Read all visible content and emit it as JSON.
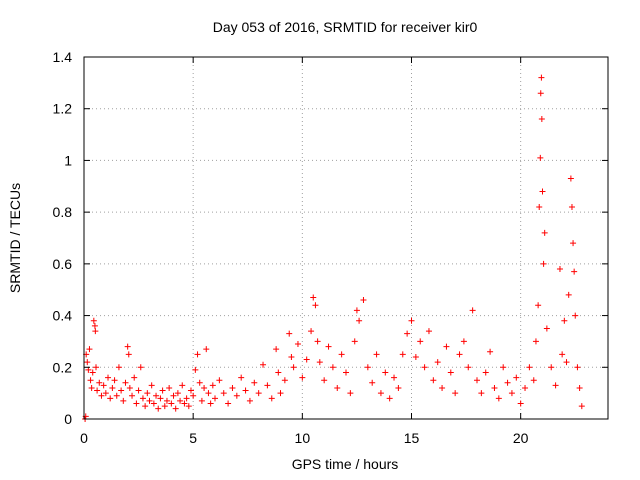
{
  "chart_data": {
    "type": "scatter",
    "title": "Day 053 of 2016, SRMTID for receiver kir0",
    "xlabel": "GPS time / hours",
    "ylabel": "SRMTID / TECUs",
    "xlim": [
      0,
      24
    ],
    "ylim": [
      0,
      1.4
    ],
    "xticks": [
      0,
      5,
      10,
      15,
      20
    ],
    "xtick_labels": [
      "0",
      "5",
      "10",
      "15",
      "20"
    ],
    "yticks": [
      0,
      0.2,
      0.4,
      0.6,
      0.8,
      1,
      1.2,
      1.4
    ],
    "ytick_labels": [
      "0",
      "0.2",
      "0.4",
      "0.6",
      "0.8",
      "1",
      "1.2",
      "1.4"
    ],
    "grid": true,
    "marker": "+",
    "color": "#ff0000",
    "series": [
      {
        "name": "kir0",
        "points": [
          [
            0.05,
            0.0
          ],
          [
            0.08,
            0.01
          ],
          [
            0.1,
            0.25
          ],
          [
            0.15,
            0.22
          ],
          [
            0.2,
            0.19
          ],
          [
            0.25,
            0.27
          ],
          [
            0.3,
            0.15
          ],
          [
            0.35,
            0.12
          ],
          [
            0.4,
            0.18
          ],
          [
            0.45,
            0.38
          ],
          [
            0.5,
            0.36
          ],
          [
            0.52,
            0.34
          ],
          [
            0.55,
            0.2
          ],
          [
            0.6,
            0.11
          ],
          [
            0.7,
            0.14
          ],
          [
            0.8,
            0.09
          ],
          [
            0.9,
            0.13
          ],
          [
            1.0,
            0.1
          ],
          [
            1.1,
            0.16
          ],
          [
            1.2,
            0.08
          ],
          [
            1.3,
            0.12
          ],
          [
            1.4,
            0.15
          ],
          [
            1.5,
            0.09
          ],
          [
            1.6,
            0.2
          ],
          [
            1.7,
            0.11
          ],
          [
            1.8,
            0.07
          ],
          [
            1.9,
            0.14
          ],
          [
            2.0,
            0.28
          ],
          [
            2.05,
            0.25
          ],
          [
            2.1,
            0.12
          ],
          [
            2.2,
            0.09
          ],
          [
            2.3,
            0.16
          ],
          [
            2.4,
            0.06
          ],
          [
            2.5,
            0.11
          ],
          [
            2.6,
            0.2
          ],
          [
            2.7,
            0.08
          ],
          [
            2.8,
            0.05
          ],
          [
            2.9,
            0.1
          ],
          [
            3.0,
            0.07
          ],
          [
            3.1,
            0.13
          ],
          [
            3.2,
            0.06
          ],
          [
            3.3,
            0.09
          ],
          [
            3.4,
            0.04
          ],
          [
            3.5,
            0.08
          ],
          [
            3.6,
            0.11
          ],
          [
            3.7,
            0.05
          ],
          [
            3.8,
            0.07
          ],
          [
            3.9,
            0.12
          ],
          [
            4.0,
            0.06
          ],
          [
            4.1,
            0.09
          ],
          [
            4.2,
            0.04
          ],
          [
            4.3,
            0.1
          ],
          [
            4.4,
            0.07
          ],
          [
            4.5,
            0.13
          ],
          [
            4.6,
            0.06
          ],
          [
            4.7,
            0.08
          ],
          [
            4.8,
            0.05
          ],
          [
            4.9,
            0.11
          ],
          [
            5.0,
            0.09
          ],
          [
            5.1,
            0.19
          ],
          [
            5.2,
            0.25
          ],
          [
            5.3,
            0.14
          ],
          [
            5.4,
            0.07
          ],
          [
            5.5,
            0.12
          ],
          [
            5.6,
            0.27
          ],
          [
            5.7,
            0.1
          ],
          [
            5.8,
            0.06
          ],
          [
            5.9,
            0.13
          ],
          [
            6.0,
            0.08
          ],
          [
            6.2,
            0.15
          ],
          [
            6.4,
            0.1
          ],
          [
            6.6,
            0.06
          ],
          [
            6.8,
            0.12
          ],
          [
            7.0,
            0.09
          ],
          [
            7.2,
            0.16
          ],
          [
            7.4,
            0.11
          ],
          [
            7.6,
            0.07
          ],
          [
            7.8,
            0.14
          ],
          [
            8.0,
            0.1
          ],
          [
            8.2,
            0.21
          ],
          [
            8.4,
            0.13
          ],
          [
            8.6,
            0.08
          ],
          [
            8.8,
            0.27
          ],
          [
            8.9,
            0.18
          ],
          [
            9.0,
            0.1
          ],
          [
            9.2,
            0.15
          ],
          [
            9.4,
            0.33
          ],
          [
            9.5,
            0.24
          ],
          [
            9.6,
            0.2
          ],
          [
            9.8,
            0.29
          ],
          [
            10.0,
            0.16
          ],
          [
            10.2,
            0.23
          ],
          [
            10.4,
            0.34
          ],
          [
            10.5,
            0.47
          ],
          [
            10.6,
            0.44
          ],
          [
            10.7,
            0.3
          ],
          [
            10.8,
            0.22
          ],
          [
            11.0,
            0.15
          ],
          [
            11.2,
            0.28
          ],
          [
            11.4,
            0.2
          ],
          [
            11.6,
            0.12
          ],
          [
            11.8,
            0.25
          ],
          [
            12.0,
            0.18
          ],
          [
            12.2,
            0.1
          ],
          [
            12.4,
            0.3
          ],
          [
            12.5,
            0.42
          ],
          [
            12.6,
            0.38
          ],
          [
            12.8,
            0.46
          ],
          [
            13.0,
            0.2
          ],
          [
            13.2,
            0.14
          ],
          [
            13.4,
            0.25
          ],
          [
            13.6,
            0.1
          ],
          [
            13.8,
            0.18
          ],
          [
            14.0,
            0.08
          ],
          [
            14.2,
            0.16
          ],
          [
            14.4,
            0.12
          ],
          [
            14.6,
            0.25
          ],
          [
            14.8,
            0.33
          ],
          [
            15.0,
            0.38
          ],
          [
            15.2,
            0.24
          ],
          [
            15.4,
            0.3
          ],
          [
            15.6,
            0.2
          ],
          [
            15.8,
            0.34
          ],
          [
            16.0,
            0.15
          ],
          [
            16.2,
            0.22
          ],
          [
            16.4,
            0.12
          ],
          [
            16.6,
            0.28
          ],
          [
            16.8,
            0.18
          ],
          [
            17.0,
            0.1
          ],
          [
            17.2,
            0.25
          ],
          [
            17.4,
            0.3
          ],
          [
            17.6,
            0.2
          ],
          [
            17.8,
            0.42
          ],
          [
            18.0,
            0.15
          ],
          [
            18.2,
            0.1
          ],
          [
            18.4,
            0.18
          ],
          [
            18.6,
            0.26
          ],
          [
            18.8,
            0.12
          ],
          [
            19.0,
            0.08
          ],
          [
            19.2,
            0.2
          ],
          [
            19.4,
            0.14
          ],
          [
            19.6,
            0.1
          ],
          [
            19.8,
            0.16
          ],
          [
            20.0,
            0.06
          ],
          [
            20.2,
            0.12
          ],
          [
            20.4,
            0.2
          ],
          [
            20.6,
            0.15
          ],
          [
            20.7,
            0.3
          ],
          [
            20.8,
            0.44
          ],
          [
            20.85,
            0.82
          ],
          [
            20.9,
            1.01
          ],
          [
            20.92,
            1.26
          ],
          [
            20.95,
            1.32
          ],
          [
            20.97,
            1.16
          ],
          [
            21.0,
            0.88
          ],
          [
            21.05,
            0.6
          ],
          [
            21.1,
            0.72
          ],
          [
            21.2,
            0.35
          ],
          [
            21.4,
            0.2
          ],
          [
            21.6,
            0.13
          ],
          [
            21.8,
            0.58
          ],
          [
            21.9,
            0.25
          ],
          [
            22.0,
            0.38
          ],
          [
            22.1,
            0.22
          ],
          [
            22.2,
            0.48
          ],
          [
            22.3,
            0.93
          ],
          [
            22.35,
            0.82
          ],
          [
            22.4,
            0.68
          ],
          [
            22.45,
            0.57
          ],
          [
            22.5,
            0.4
          ],
          [
            22.6,
            0.2
          ],
          [
            22.7,
            0.12
          ],
          [
            22.8,
            0.05
          ]
        ]
      }
    ]
  }
}
